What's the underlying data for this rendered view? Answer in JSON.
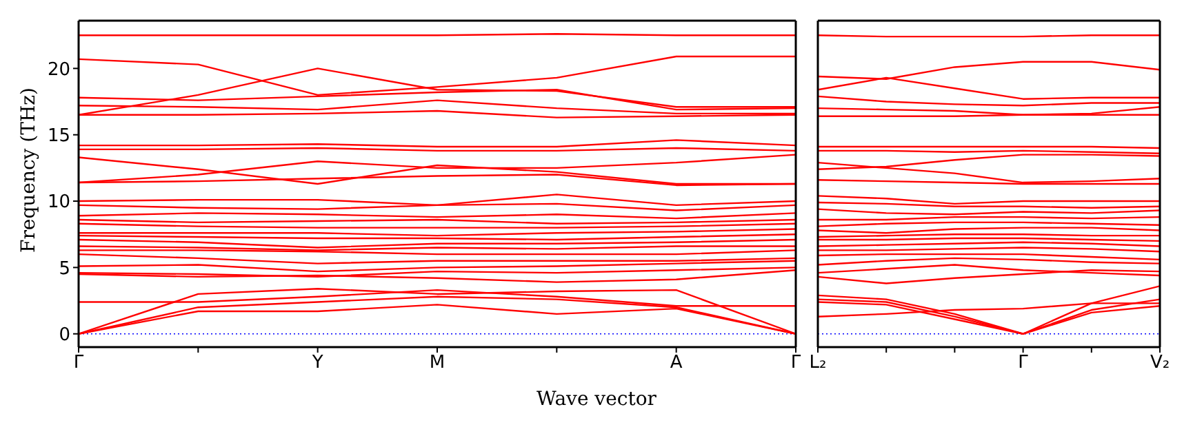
{
  "chart_data": [
    {
      "type": "line",
      "xlabel": "Wave vector",
      "ylabel": "Frequency (THz)",
      "ylim": [
        -1,
        23.6
      ],
      "yticks": [
        0,
        5,
        10,
        15,
        20
      ],
      "categories": [
        "Γ",
        null,
        "Y",
        "M",
        null,
        "A",
        "Γ"
      ],
      "ref_lines": [
        {
          "axis": "y",
          "value": 0,
          "color": "#0000ff",
          "line_style": "dotted"
        }
      ],
      "series": [
        {
          "color": "#ff0000",
          "values": [
            22.5,
            22.5,
            22.5,
            22.5,
            22.6,
            22.5,
            22.5
          ]
        },
        {
          "color": "#ff0000",
          "values": [
            20.7,
            20.3,
            18.0,
            18.6,
            19.3,
            20.9,
            20.9
          ]
        },
        {
          "color": "#ff0000",
          "values": [
            16.5,
            18.0,
            20.0,
            18.4,
            18.3,
            17.1,
            17.1
          ]
        },
        {
          "color": "#ff0000",
          "values": [
            17.8,
            17.6,
            17.9,
            18.2,
            18.4,
            16.9,
            17.0
          ]
        },
        {
          "color": "#ff0000",
          "values": [
            17.2,
            17.1,
            16.9,
            17.6,
            17.0,
            16.6,
            16.6
          ]
        },
        {
          "color": "#ff0000",
          "values": [
            16.5,
            16.5,
            16.6,
            16.8,
            16.3,
            16.4,
            16.5
          ]
        },
        {
          "color": "#ff0000",
          "values": [
            14.2,
            14.2,
            14.3,
            14.1,
            14.1,
            14.6,
            14.2
          ]
        },
        {
          "color": "#ff0000",
          "values": [
            13.9,
            13.9,
            14.0,
            13.8,
            13.8,
            14.0,
            13.8
          ]
        },
        {
          "color": "#ff0000",
          "values": [
            13.3,
            12.4,
            11.3,
            12.7,
            12.2,
            11.3,
            11.3
          ]
        },
        {
          "color": "#ff0000",
          "values": [
            11.4,
            12.0,
            13.0,
            12.5,
            12.5,
            12.9,
            13.5
          ]
        },
        {
          "color": "#ff0000",
          "values": [
            11.4,
            11.5,
            11.7,
            11.9,
            12.0,
            11.2,
            11.3
          ]
        },
        {
          "color": "#ff0000",
          "values": [
            10.0,
            10.1,
            10.1,
            9.7,
            10.5,
            9.7,
            10.0
          ]
        },
        {
          "color": "#ff0000",
          "values": [
            9.7,
            9.5,
            9.4,
            9.7,
            9.8,
            9.3,
            9.7
          ]
        },
        {
          "color": "#ff0000",
          "values": [
            8.9,
            9.1,
            9.0,
            8.8,
            9.0,
            8.7,
            9.1
          ]
        },
        {
          "color": "#ff0000",
          "values": [
            8.6,
            8.4,
            8.5,
            8.6,
            8.3,
            8.4,
            8.6
          ]
        },
        {
          "color": "#ff0000",
          "values": [
            8.3,
            8.1,
            8.0,
            8.0,
            8.0,
            8.1,
            8.3
          ]
        },
        {
          "color": "#ff0000",
          "values": [
            7.6,
            7.6,
            7.6,
            7.4,
            7.6,
            7.7,
            7.9
          ]
        },
        {
          "color": "#ff0000",
          "values": [
            7.4,
            7.3,
            7.2,
            7.2,
            7.1,
            7.3,
            7.5
          ]
        },
        {
          "color": "#ff0000",
          "values": [
            7.1,
            6.9,
            6.5,
            6.8,
            6.8,
            6.9,
            7.1
          ]
        },
        {
          "color": "#ff0000",
          "values": [
            6.6,
            6.5,
            6.3,
            6.5,
            6.4,
            6.6,
            6.6
          ]
        },
        {
          "color": "#ff0000",
          "values": [
            6.3,
            6.3,
            6.2,
            6.0,
            6.0,
            6.0,
            6.3
          ]
        },
        {
          "color": "#ff0000",
          "values": [
            6.0,
            5.7,
            5.3,
            5.5,
            5.5,
            5.5,
            5.7
          ]
        },
        {
          "color": "#ff0000",
          "values": [
            5.1,
            5.2,
            4.7,
            5.0,
            5.1,
            5.3,
            5.5
          ]
        },
        {
          "color": "#ff0000",
          "values": [
            4.6,
            4.5,
            4.3,
            4.7,
            4.6,
            4.8,
            5.0
          ]
        },
        {
          "color": "#ff0000",
          "values": [
            4.5,
            4.3,
            4.4,
            4.2,
            3.9,
            4.1,
            4.8
          ]
        },
        {
          "color": "#ff0000",
          "values": [
            2.4,
            2.4,
            2.8,
            3.3,
            2.8,
            2.1,
            2.1
          ]
        },
        {
          "color": "#ff0000",
          "values": [
            0,
            3.0,
            3.4,
            3.0,
            3.2,
            3.3,
            0
          ]
        },
        {
          "color": "#ff0000",
          "values": [
            0,
            2.0,
            2.4,
            2.8,
            2.6,
            2.0,
            0
          ]
        },
        {
          "color": "#ff0000",
          "values": [
            0,
            1.7,
            1.7,
            2.2,
            1.5,
            1.9,
            0
          ]
        }
      ]
    },
    {
      "type": "line",
      "ylim": [
        -1,
        23.6
      ],
      "yticks": [
        0,
        5,
        10,
        15,
        20
      ],
      "tick_labels": "x",
      "categories": [
        "L₂",
        null,
        null,
        "Γ",
        null,
        "V₂"
      ],
      "ref_lines": [
        {
          "axis": "y",
          "value": 0,
          "color": "#0000ff",
          "line_style": "dotted"
        }
      ],
      "series": [
        {
          "color": "#ff0000",
          "values": [
            22.5,
            22.4,
            22.4,
            22.4,
            22.5,
            22.5
          ]
        },
        {
          "color": "#ff0000",
          "values": [
            19.4,
            19.2,
            20.1,
            20.5,
            20.5,
            19.9
          ]
        },
        {
          "color": "#ff0000",
          "values": [
            18.4,
            19.3,
            18.5,
            17.7,
            17.8,
            17.8
          ]
        },
        {
          "color": "#ff0000",
          "values": [
            17.9,
            17.5,
            17.3,
            17.2,
            17.4,
            17.4
          ]
        },
        {
          "color": "#ff0000",
          "values": [
            17.0,
            16.9,
            16.8,
            16.5,
            16.6,
            17.1
          ]
        },
        {
          "color": "#ff0000",
          "values": [
            16.4,
            16.4,
            16.4,
            16.5,
            16.5,
            16.5
          ]
        },
        {
          "color": "#ff0000",
          "values": [
            14.1,
            14.1,
            14.1,
            14.1,
            14.1,
            14.0
          ]
        },
        {
          "color": "#ff0000",
          "values": [
            13.8,
            13.8,
            13.7,
            13.8,
            13.7,
            13.6
          ]
        },
        {
          "color": "#ff0000",
          "values": [
            12.9,
            12.5,
            12.1,
            11.4,
            11.5,
            11.7
          ]
        },
        {
          "color": "#ff0000",
          "values": [
            12.4,
            12.6,
            13.1,
            13.5,
            13.5,
            13.4
          ]
        },
        {
          "color": "#ff0000",
          "values": [
            11.6,
            11.5,
            11.4,
            11.3,
            11.3,
            11.3
          ]
        },
        {
          "color": "#ff0000",
          "values": [
            10.4,
            10.2,
            9.8,
            10.0,
            10.0,
            10.0
          ]
        },
        {
          "color": "#ff0000",
          "values": [
            9.9,
            9.8,
            9.6,
            9.6,
            9.5,
            9.6
          ]
        },
        {
          "color": "#ff0000",
          "values": [
            9.4,
            9.1,
            9.0,
            9.2,
            9.1,
            9.3
          ]
        },
        {
          "color": "#ff0000",
          "values": [
            8.6,
            8.6,
            8.8,
            8.8,
            8.7,
            8.8
          ]
        },
        {
          "color": "#ff0000",
          "values": [
            8.1,
            8.3,
            8.4,
            8.4,
            8.3,
            8.2
          ]
        },
        {
          "color": "#ff0000",
          "values": [
            7.8,
            7.6,
            7.9,
            8.0,
            8.0,
            7.8
          ]
        },
        {
          "color": "#ff0000",
          "values": [
            7.3,
            7.4,
            7.5,
            7.5,
            7.4,
            7.4
          ]
        },
        {
          "color": "#ff0000",
          "values": [
            7.1,
            7.1,
            7.2,
            7.2,
            7.1,
            7.0
          ]
        },
        {
          "color": "#ff0000",
          "values": [
            6.6,
            6.7,
            6.8,
            6.9,
            6.8,
            6.6
          ]
        },
        {
          "color": "#ff0000",
          "values": [
            6.3,
            6.3,
            6.4,
            6.5,
            6.4,
            6.2
          ]
        },
        {
          "color": "#ff0000",
          "values": [
            5.9,
            6.0,
            6.0,
            6.0,
            5.8,
            5.6
          ]
        },
        {
          "color": "#ff0000",
          "values": [
            5.2,
            5.5,
            5.7,
            5.6,
            5.4,
            5.3
          ]
        },
        {
          "color": "#ff0000",
          "values": [
            4.6,
            4.9,
            5.2,
            4.8,
            4.6,
            4.4
          ]
        },
        {
          "color": "#ff0000",
          "values": [
            4.3,
            3.8,
            4.2,
            4.5,
            4.8,
            4.7
          ]
        },
        {
          "color": "#ff0000",
          "values": [
            1.3,
            1.5,
            1.8,
            1.9,
            2.3,
            2.3
          ]
        },
        {
          "color": "#ff0000",
          "values": [
            2.9,
            2.6,
            1.5,
            0,
            2.3,
            3.6
          ]
        },
        {
          "color": "#ff0000",
          "values": [
            2.6,
            2.4,
            1.3,
            0,
            1.8,
            2.6
          ]
        },
        {
          "color": "#ff0000",
          "values": [
            2.4,
            2.2,
            1.1,
            0,
            1.6,
            2.1
          ]
        }
      ]
    }
  ]
}
